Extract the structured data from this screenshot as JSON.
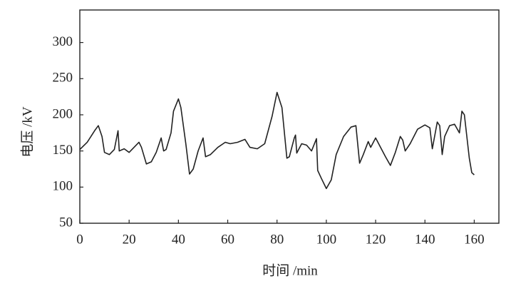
{
  "chart_data": {
    "type": "line",
    "xlabel": "时间 /min",
    "ylabel": "电压 /kV",
    "x": [
      0,
      3,
      6,
      7.5,
      9,
      10,
      12,
      14,
      15.5,
      16,
      18,
      20,
      22,
      24,
      25,
      27,
      29,
      31,
      33,
      34,
      35,
      37,
      38,
      40,
      41,
      43,
      44.5,
      46,
      48,
      50,
      51,
      53,
      56,
      59,
      61,
      64,
      67,
      69,
      72,
      75,
      78,
      80,
      82,
      84,
      85,
      87,
      87.5,
      88,
      90,
      92,
      94,
      96,
      96.5,
      98,
      100,
      102,
      104,
      107,
      110,
      112,
      113.5,
      115,
      117,
      118,
      120,
      122,
      124,
      126,
      128,
      130,
      131,
      132,
      134,
      137,
      140,
      142,
      143,
      145,
      146,
      147,
      148,
      150,
      152,
      154,
      155,
      156,
      158,
      159,
      160
    ],
    "values": [
      152,
      162,
      178,
      185,
      170,
      148,
      145,
      152,
      178,
      150,
      153,
      148,
      155,
      162,
      155,
      132,
      135,
      148,
      168,
      150,
      152,
      175,
      205,
      222,
      210,
      160,
      118,
      125,
      150,
      168,
      142,
      145,
      155,
      162,
      160,
      162,
      166,
      155,
      153,
      160,
      198,
      231,
      210,
      140,
      142,
      168,
      172,
      147,
      160,
      158,
      150,
      167,
      123,
      112,
      98,
      110,
      145,
      170,
      183,
      185,
      133,
      145,
      163,
      155,
      168,
      155,
      142,
      130,
      148,
      170,
      165,
      150,
      160,
      180,
      186,
      182,
      153,
      190,
      185,
      145,
      170,
      185,
      187,
      175,
      205,
      200,
      140,
      120,
      117
    ],
    "color": "#222222",
    "xlim": [
      0,
      170
    ],
    "xticks": [
      0,
      20,
      40,
      60,
      80,
      100,
      120,
      140,
      160
    ],
    "ylim": [
      50,
      345
    ],
    "yticks": [
      50,
      100,
      150,
      200,
      250,
      300
    ]
  }
}
